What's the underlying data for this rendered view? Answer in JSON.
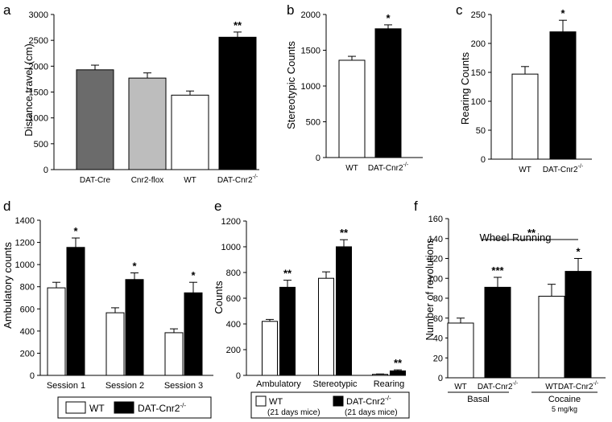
{
  "chart_data": [
    {
      "panel": "a",
      "type": "bar",
      "categories": [
        "DAT-Cre",
        "Cnr2-flox",
        "WT",
        "DAT-Cnr2"
      ],
      "category_sup": [
        "",
        "",
        "",
        "-/-"
      ],
      "values": [
        1930,
        1770,
        1440,
        2560
      ],
      "errors": [
        90,
        100,
        80,
        100
      ],
      "colors": [
        "#6b6b6b",
        "#bdbdbd",
        "#ffffff",
        "#000000"
      ],
      "stars": [
        "",
        "",
        "",
        "**"
      ],
      "ylabel": "Distance travel (cm)",
      "ylim": [
        0,
        3000
      ],
      "yticks": [
        0,
        500,
        1000,
        1500,
        2000,
        2500,
        3000
      ]
    },
    {
      "panel": "b",
      "type": "bar",
      "categories": [
        "WT",
        "DAT-Cnr2"
      ],
      "category_sup": [
        "",
        "-/-"
      ],
      "values": [
        1360,
        1800
      ],
      "errors": [
        55,
        55
      ],
      "colors": [
        "#ffffff",
        "#000000"
      ],
      "stars": [
        "",
        "*"
      ],
      "ylabel": "Stereotypic Counts",
      "ylim": [
        0,
        2000
      ],
      "yticks": [
        0,
        500,
        1000,
        1500,
        2000
      ]
    },
    {
      "panel": "c",
      "type": "bar",
      "categories": [
        "WT",
        "DAT-Cnr2"
      ],
      "category_sup": [
        "",
        "-/-"
      ],
      "values": [
        147,
        220
      ],
      "errors": [
        13,
        20
      ],
      "colors": [
        "#ffffff",
        "#000000"
      ],
      "stars": [
        "",
        "*"
      ],
      "ylabel": "Rearing Counts",
      "ylim": [
        0,
        250
      ],
      "yticks": [
        0,
        50,
        100,
        150,
        200,
        250
      ]
    },
    {
      "panel": "d",
      "type": "bar",
      "categories": [
        "Session 1",
        "Session 2",
        "Session 3"
      ],
      "series": [
        {
          "name": "WT",
          "values": [
            790,
            565,
            385
          ],
          "errors": [
            50,
            45,
            35
          ],
          "color": "#ffffff",
          "stars": [
            "",
            "",
            ""
          ]
        },
        {
          "name": "DAT-Cnr2-/-",
          "values": [
            1155,
            865,
            745
          ],
          "errors": [
            85,
            60,
            95
          ],
          "color": "#000000",
          "stars": [
            "*",
            "*",
            "*"
          ]
        }
      ],
      "ylabel": "Ambulatory counts",
      "ylim": [
        0,
        1400
      ],
      "yticks": [
        0,
        200,
        400,
        600,
        800,
        1000,
        1200,
        1400
      ],
      "legend": {
        "wt": "WT",
        "ko": "DAT-Cnr2",
        "ko_sup": "-/-"
      }
    },
    {
      "panel": "e",
      "type": "bar",
      "categories": [
        "Ambulatory",
        "Stereotypic",
        "Rearing"
      ],
      "series": [
        {
          "name": "WT (21 days mice)",
          "values": [
            420,
            755,
            8
          ],
          "errors": [
            15,
            50,
            3
          ],
          "color": "#ffffff",
          "stars": [
            "",
            "",
            ""
          ]
        },
        {
          "name": "DAT-Cnr2-/- (21 days mice)",
          "values": [
            685,
            1000,
            35
          ],
          "errors": [
            55,
            55,
            8
          ],
          "color": "#000000",
          "stars": [
            "**",
            "**",
            "**"
          ]
        }
      ],
      "ylabel": "Counts",
      "ylim": [
        0,
        1200
      ],
      "yticks": [
        0,
        200,
        400,
        600,
        800,
        1000,
        1200
      ],
      "legend": {
        "wt": "WT",
        "wt_sub": "(21 days mice)",
        "ko": "DAT-Cnr2",
        "ko_sup": "-/-",
        "ko_sub": "(21 days mice)"
      }
    },
    {
      "panel": "f",
      "type": "bar",
      "title": "Wheel Running",
      "groups": [
        "Basal",
        "Cocaine"
      ],
      "group_sub": [
        "",
        "5 mg/kg"
      ],
      "categories": [
        "WT",
        "DAT-Cnr2",
        "WT",
        "DAT-Cnr2"
      ],
      "category_sup": [
        "",
        "-/-",
        "",
        "-/-"
      ],
      "values": [
        55,
        91,
        82,
        107
      ],
      "errors": [
        5,
        10,
        12,
        13
      ],
      "colors": [
        "#ffffff",
        "#000000",
        "#ffffff",
        "#000000"
      ],
      "stars": [
        "",
        "***",
        "",
        "*"
      ],
      "bracket_star": "**",
      "ylabel": "Number of revolutions",
      "ylim": [
        0,
        160
      ],
      "yticks": [
        0,
        20,
        40,
        60,
        80,
        100,
        120,
        140,
        160
      ]
    }
  ]
}
